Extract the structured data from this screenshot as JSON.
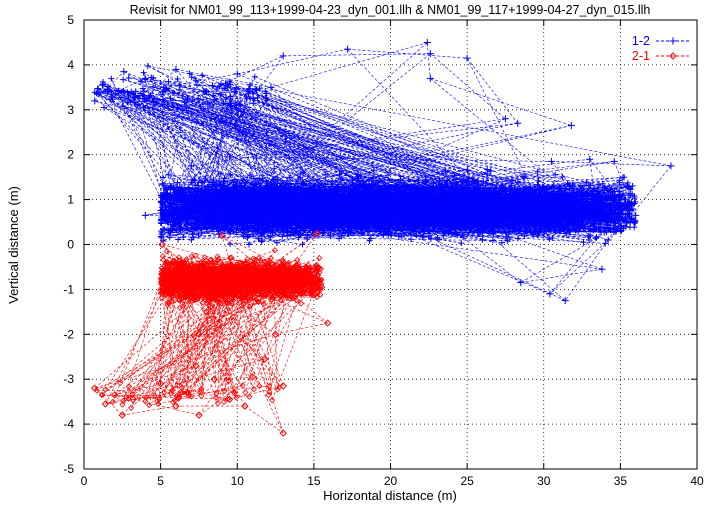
{
  "chart_data": {
    "type": "scatter",
    "title": "Revisit for NM01_99_113+1999-04-23_dyn_001.llh & NM01_99_117+1999-04-27_dyn_015.llh",
    "xlabel": "Horizontal distance (m)",
    "ylabel": "Vertical distance (m)",
    "xlim": [
      0,
      40
    ],
    "ylim": [
      -5,
      5
    ],
    "xticks": [
      "0",
      "5",
      "10",
      "15",
      "20",
      "25",
      "30",
      "35",
      "40"
    ],
    "yticks": [
      "-5",
      "-4",
      "-3",
      "-2",
      "-1",
      "0",
      "1",
      "2",
      "3",
      "4",
      "5"
    ],
    "grid": true,
    "grid_style": "dotted",
    "legend_position": "top-right",
    "series": [
      {
        "name": "1-2",
        "color": "#0000ff",
        "marker": "plus",
        "line_style": "dashed",
        "clusters": [
          {
            "x_range": [
              5.0,
              36.0
            ],
            "y_center": 0.8,
            "y_spread": 0.55,
            "density": "very high"
          },
          {
            "x_range": [
              0.7,
              12.0
            ],
            "y_center": 3.4,
            "y_spread": 0.35,
            "density": "medium"
          }
        ],
        "points": [
          {
            "x": 0.7,
            "y": 3.2
          },
          {
            "x": 1.2,
            "y": 3.55
          },
          {
            "x": 1.8,
            "y": 3.35
          },
          {
            "x": 2.6,
            "y": 3.85
          },
          {
            "x": 3.5,
            "y": 3.1
          },
          {
            "x": 4.0,
            "y": 3.7
          },
          {
            "x": 5.2,
            "y": 3.5
          },
          {
            "x": 6.0,
            "y": 3.9
          },
          {
            "x": 8.0,
            "y": 3.4
          },
          {
            "x": 10.0,
            "y": 3.8
          },
          {
            "x": 12.2,
            "y": 3.5
          },
          {
            "x": 13.0,
            "y": 4.2
          },
          {
            "x": 17.2,
            "y": 4.35
          },
          {
            "x": 22.4,
            "y": 4.5
          },
          {
            "x": 22.6,
            "y": 4.25
          },
          {
            "x": 25.0,
            "y": 4.15
          },
          {
            "x": 22.6,
            "y": 3.7
          },
          {
            "x": 27.5,
            "y": 2.8
          },
          {
            "x": 28.3,
            "y": 2.7
          },
          {
            "x": 31.8,
            "y": 2.65
          },
          {
            "x": 7.0,
            "y": 1.75
          },
          {
            "x": 9.5,
            "y": 1.95
          },
          {
            "x": 4.0,
            "y": 0.65
          },
          {
            "x": 5.6,
            "y": 0.3
          },
          {
            "x": 30.5,
            "y": 1.85
          },
          {
            "x": 33.0,
            "y": 1.9
          },
          {
            "x": 34.6,
            "y": 1.85
          },
          {
            "x": 38.3,
            "y": 1.75
          },
          {
            "x": 35.5,
            "y": 0.8
          },
          {
            "x": 36.0,
            "y": 0.65
          },
          {
            "x": 35.0,
            "y": 0.35
          },
          {
            "x": 34.2,
            "y": 0.1
          },
          {
            "x": 28.5,
            "y": -0.85
          },
          {
            "x": 30.4,
            "y": -1.1
          },
          {
            "x": 31.4,
            "y": -1.25
          },
          {
            "x": 33.8,
            "y": -0.55
          }
        ]
      },
      {
        "name": "2-1",
        "color": "#ff0000",
        "marker": "diamond",
        "line_style": "dashed",
        "clusters": [
          {
            "x_range": [
              5.0,
              15.5
            ],
            "y_center": -0.8,
            "y_spread": 0.4,
            "density": "high"
          },
          {
            "x_range": [
              0.7,
              13.0
            ],
            "y_center": -3.35,
            "y_spread": 0.3,
            "density": "low"
          }
        ],
        "points": [
          {
            "x": 5.1,
            "y": 0.0
          },
          {
            "x": 9.0,
            "y": 0.2
          },
          {
            "x": 15.2,
            "y": 0.25
          },
          {
            "x": 15.5,
            "y": -0.95
          },
          {
            "x": 15.9,
            "y": -1.75
          },
          {
            "x": 8.0,
            "y": -1.5
          },
          {
            "x": 7.5,
            "y": -2.0
          },
          {
            "x": 12.5,
            "y": -2.0
          },
          {
            "x": 11.8,
            "y": -2.55
          },
          {
            "x": 7.3,
            "y": -2.7
          },
          {
            "x": 0.7,
            "y": -3.2
          },
          {
            "x": 1.4,
            "y": -3.55
          },
          {
            "x": 2.0,
            "y": -3.35
          },
          {
            "x": 2.5,
            "y": -3.8
          },
          {
            "x": 3.2,
            "y": -3.45
          },
          {
            "x": 5.0,
            "y": -3.1
          },
          {
            "x": 6.0,
            "y": -3.6
          },
          {
            "x": 7.5,
            "y": -3.8
          },
          {
            "x": 9.5,
            "y": -3.45
          },
          {
            "x": 10.5,
            "y": -3.6
          },
          {
            "x": 11.0,
            "y": -2.95
          },
          {
            "x": 13.0,
            "y": -3.15
          },
          {
            "x": 13.0,
            "y": -4.2
          },
          {
            "x": 8.5,
            "y": -3.0
          }
        ]
      }
    ]
  }
}
